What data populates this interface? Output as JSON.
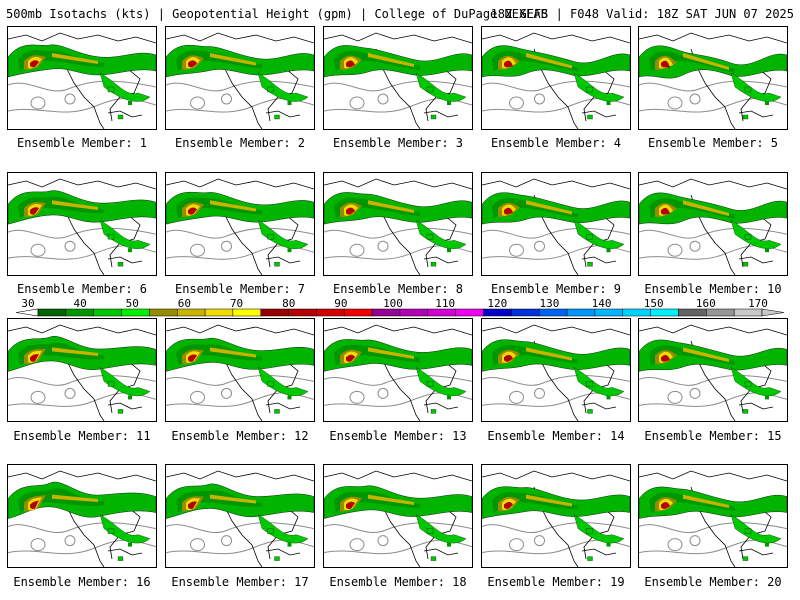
{
  "header": {
    "title": "500mb Isotachs (kts) | Geopotential Height (gpm) | College of DuPage NEXLAB",
    "run_info": "18Z GEFS | F048 Valid: 18Z SAT JUN 07 2025"
  },
  "caption_prefix": "Ensemble Member:",
  "members": [
    {
      "label": "Ensemble Member: 1"
    },
    {
      "label": "Ensemble Member: 2"
    },
    {
      "label": "Ensemble Member: 3"
    },
    {
      "label": "Ensemble Member: 4"
    },
    {
      "label": "Ensemble Member: 5"
    },
    {
      "label": "Ensemble Member: 6"
    },
    {
      "label": "Ensemble Member: 7"
    },
    {
      "label": "Ensemble Member: 8"
    },
    {
      "label": "Ensemble Member: 9"
    },
    {
      "label": "Ensemble Member: 10"
    },
    {
      "label": "Ensemble Member: 11"
    },
    {
      "label": "Ensemble Member: 12"
    },
    {
      "label": "Ensemble Member: 13"
    },
    {
      "label": "Ensemble Member: 14"
    },
    {
      "label": "Ensemble Member: 15"
    },
    {
      "label": "Ensemble Member: 16"
    },
    {
      "label": "Ensemble Member: 17"
    },
    {
      "label": "Ensemble Member: 18"
    },
    {
      "label": "Ensemble Member: 19"
    },
    {
      "label": "Ensemble Member: 20"
    }
  ],
  "colorbar": {
    "labels": [
      "30",
      "40",
      "50",
      "60",
      "70",
      "80",
      "90",
      "100",
      "110",
      "120",
      "130",
      "140",
      "150",
      "160",
      "170"
    ],
    "colors": [
      "#006400",
      "#009600",
      "#00c800",
      "#00f000",
      "#968c00",
      "#c8b400",
      "#f0dc00",
      "#ffff00",
      "#960000",
      "#b40000",
      "#d20000",
      "#f00000",
      "#960096",
      "#b400b4",
      "#d200d2",
      "#f000f0",
      "#0000c8",
      "#0032dc",
      "#0064f0",
      "#0096ff",
      "#00b4ff",
      "#00d2ff",
      "#00f0ff",
      "#646464",
      "#969696",
      "#c8c8c8"
    ]
  },
  "icons": {
    "map_panel": "ensemble-map-icon"
  }
}
